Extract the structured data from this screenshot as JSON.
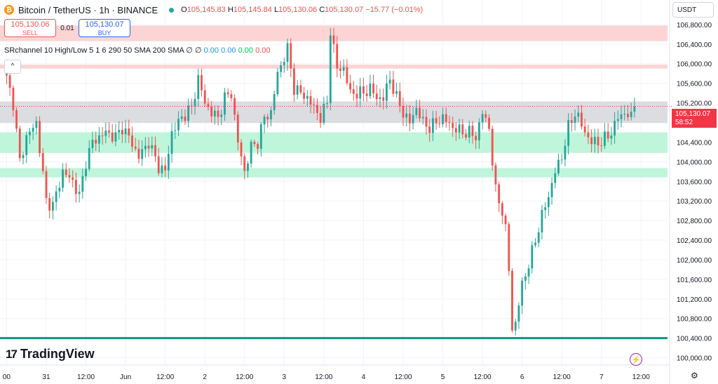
{
  "header": {
    "coin_symbol": "₿",
    "title": "Bitcoin / TetherUS · 1h · BINANCE",
    "ohlc": {
      "o_label": "O",
      "o": "105,145.83",
      "h_label": "H",
      "h": "105,145.84",
      "l_label": "L",
      "l": "105,130.06",
      "c_label": "C",
      "c": "105,130.07",
      "change": "−15.77 (−0.01%)"
    }
  },
  "trade": {
    "sell_price": "105,130.06",
    "sell_label": "SELL",
    "spread": "0.01",
    "buy_price": "105,130.07",
    "buy_label": "BUY"
  },
  "indicator": {
    "name": "SRchannel 10 High/Low 5 1 6 290 50 SMA 200 SMA",
    "v0": "∅",
    "v1": "∅",
    "v2": "0.00",
    "v3": "0.00",
    "v4": "0.00",
    "v5": "0.00"
  },
  "collapse_icon": "^",
  "currency": "USDT",
  "price_label": {
    "price": "105,130.07",
    "countdown": "58:52"
  },
  "logo": {
    "mark": "17",
    "text": "TradingView"
  },
  "colors": {
    "up": "#26a69a",
    "down": "#ef5350",
    "resistance": "#f7b4b4",
    "support": "#9ef0c6",
    "channel": "#c9cbd1",
    "base_line": "#089981",
    "price_line": "#f23645"
  },
  "chart_data": {
    "type": "candlestick",
    "ylim": [
      99850,
      107300
    ],
    "y_ticks": [
      100000,
      100400,
      100800,
      101200,
      101600,
      102000,
      102400,
      102800,
      103200,
      103600,
      104000,
      104400,
      104800,
      105200,
      105600,
      106000,
      106400,
      106800
    ],
    "y_tick_labels": [
      "100,000.00",
      "100,400.00",
      "100,800.00",
      "101,200.00",
      "101,600.00",
      "102,000.00",
      "102,400.00",
      "102,800.00",
      "103,200.00",
      "103,600.00",
      "104,000.00",
      "104,400.00",
      "104,800.00",
      "105,200.00",
      "105,600.00",
      "106,000.00",
      "106,400.00",
      "106,800.00"
    ],
    "x_ticks": [
      {
        "label": "00",
        "t": 0
      },
      {
        "label": "31",
        "t": 12
      },
      {
        "label": "12:00",
        "t": 24
      },
      {
        "label": "Jun",
        "t": 36
      },
      {
        "label": "12:00",
        "t": 48
      },
      {
        "label": "2",
        "t": 60
      },
      {
        "label": "12:00",
        "t": 72
      },
      {
        "label": "3",
        "t": 84
      },
      {
        "label": "12:00",
        "t": 96
      },
      {
        "label": "4",
        "t": 108
      },
      {
        "label": "12:00",
        "t": 120
      },
      {
        "label": "5",
        "t": 132
      },
      {
        "label": "12:00",
        "t": 144
      },
      {
        "label": "6",
        "t": 156
      },
      {
        "label": "12:00",
        "t": 168
      },
      {
        "label": "7",
        "t": 180
      },
      {
        "label": "12:00",
        "t": 192
      }
    ],
    "zones": [
      {
        "name": "resistance-upper",
        "from": 106460,
        "to": 106780,
        "color": "#fcd4d4"
      },
      {
        "name": "resistance-lower",
        "from": 105900,
        "to": 105980,
        "color": "#fcd4d4"
      },
      {
        "name": "channel",
        "from": 104790,
        "to": 105230,
        "color": "#dcdde1"
      },
      {
        "name": "support-upper",
        "from": 104180,
        "to": 104600,
        "color": "#bff5da"
      },
      {
        "name": "support-lower",
        "from": 103680,
        "to": 103870,
        "color": "#bff5da"
      }
    ],
    "horizontal_line": 100400,
    "last_price": 105130.07,
    "anchors": [
      [
        0,
        105700
      ],
      [
        2,
        105200
      ],
      [
        4,
        104000
      ],
      [
        6,
        104500
      ],
      [
        9,
        104800
      ],
      [
        12,
        103200
      ],
      [
        14,
        103100
      ],
      [
        17,
        103800
      ],
      [
        20,
        103600
      ],
      [
        22,
        103300
      ],
      [
        24,
        104000
      ],
      [
        26,
        104400
      ],
      [
        30,
        104600
      ],
      [
        33,
        104500
      ],
      [
        35,
        104700
      ],
      [
        37,
        104500
      ],
      [
        40,
        104100
      ],
      [
        43,
        104400
      ],
      [
        46,
        103900
      ],
      [
        48,
        103800
      ],
      [
        50,
        104600
      ],
      [
        53,
        104900
      ],
      [
        56,
        105100
      ],
      [
        58,
        105700
      ],
      [
        60,
        105200
      ],
      [
        62,
        105000
      ],
      [
        64,
        104900
      ],
      [
        66,
        105300
      ],
      [
        68,
        105400
      ],
      [
        70,
        104400
      ],
      [
        72,
        103800
      ],
      [
        74,
        104300
      ],
      [
        76,
        104400
      ],
      [
        78,
        104900
      ],
      [
        80,
        105000
      ],
      [
        82,
        105800
      ],
      [
        85,
        106300
      ],
      [
        87,
        105500
      ],
      [
        89,
        105400
      ],
      [
        91,
        105300
      ],
      [
        93,
        105100
      ],
      [
        95,
        104900
      ],
      [
        97,
        105200
      ],
      [
        98,
        106700
      ],
      [
        100,
        105900
      ],
      [
        102,
        105900
      ],
      [
        104,
        105400
      ],
      [
        106,
        105400
      ],
      [
        108,
        105400
      ],
      [
        110,
        105500
      ],
      [
        112,
        105300
      ],
      [
        114,
        105300
      ],
      [
        116,
        105700
      ],
      [
        118,
        105300
      ],
      [
        120,
        105000
      ],
      [
        122,
        104800
      ],
      [
        124,
        105100
      ],
      [
        126,
        104800
      ],
      [
        128,
        104700
      ],
      [
        130,
        104800
      ],
      [
        132,
        104900
      ],
      [
        135,
        104700
      ],
      [
        138,
        104600
      ],
      [
        140,
        104600
      ],
      [
        142,
        104500
      ],
      [
        144,
        105000
      ],
      [
        146,
        104700
      ],
      [
        147,
        104000
      ],
      [
        148,
        103400
      ],
      [
        150,
        103000
      ],
      [
        151,
        102600
      ],
      [
        152,
        101800
      ],
      [
        153,
        100600
      ],
      [
        154,
        100700
      ],
      [
        156,
        101500
      ],
      [
        158,
        101900
      ],
      [
        160,
        102400
      ],
      [
        162,
        102900
      ],
      [
        164,
        103300
      ],
      [
        166,
        103800
      ],
      [
        168,
        104100
      ],
      [
        170,
        104700
      ],
      [
        172,
        105000
      ],
      [
        173,
        104900
      ],
      [
        175,
        104600
      ],
      [
        177,
        104400
      ],
      [
        180,
        104400
      ],
      [
        183,
        104600
      ],
      [
        185,
        104900
      ],
      [
        187,
        105000
      ],
      [
        189,
        104900
      ],
      [
        190,
        105130
      ]
    ],
    "n_candles": 191
  }
}
